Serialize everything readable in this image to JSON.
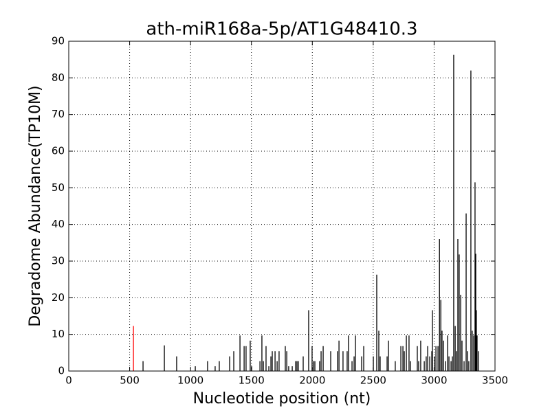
{
  "chart_data": {
    "type": "bar",
    "title": "ath-miR168a-5p/AT1G48410.3",
    "xlabel": "Nucleotide position (nt)",
    "ylabel": "Degradome Abundance(TP10M)",
    "xlim": [
      0,
      3500
    ],
    "xticks": [
      0,
      500,
      1000,
      1500,
      2000,
      2500,
      3000,
      3500
    ],
    "ylim": [
      0,
      90
    ],
    "yticks": [
      0,
      10,
      20,
      30,
      40,
      50,
      60,
      70,
      80,
      90
    ],
    "grid": true,
    "series": [
      {
        "color": "#000000",
        "x": [
          610,
          785,
          886,
          1039,
          1140,
          1202,
          1236,
          1321,
          1355,
          1406,
          1440,
          1456,
          1490,
          1502,
          1570,
          1586,
          1598,
          1620,
          1643,
          1660,
          1671,
          1694,
          1711,
          1727,
          1778,
          1790,
          1806,
          1835,
          1863,
          1874,
          1885,
          1925,
          1970,
          1998,
          2010,
          2021,
          2060,
          2072,
          2089,
          2151,
          2207,
          2219,
          2252,
          2286,
          2297,
          2326,
          2343,
          2354,
          2405,
          2422,
          2501,
          2529,
          2546,
          2557,
          2614,
          2625,
          2681,
          2727,
          2744,
          2755,
          2772,
          2794,
          2806,
          2862,
          2873,
          2890,
          2919,
          2935,
          2947,
          2964,
          2981,
          2986,
          3003,
          3015,
          3032,
          3044,
          3055,
          3065,
          3077,
          3094,
          3111,
          3122,
          3139,
          3150,
          3161,
          3173,
          3184,
          3195,
          3206,
          3218,
          3229,
          3246,
          3263,
          3274,
          3285,
          3302,
          3313,
          3325,
          3336,
          3342,
          3347,
          3353,
          3364
        ],
        "values": [
          2.7,
          7,
          4,
          1.3,
          2.7,
          1.3,
          2.7,
          4,
          5.4,
          9.7,
          6.8,
          6.8,
          8.3,
          1.3,
          2.7,
          9.7,
          2.7,
          6.8,
          1.3,
          4,
          5.4,
          5.4,
          2.7,
          5.4,
          6.8,
          5.4,
          1.3,
          1.3,
          2.7,
          2.7,
          2.7,
          4,
          16.6,
          6.8,
          2.7,
          2.7,
          2.7,
          5.4,
          6.8,
          5.4,
          5.4,
          8.3,
          5.4,
          5.4,
          9.7,
          2.7,
          4,
          9.7,
          4,
          6.8,
          4,
          26.3,
          11,
          4,
          4,
          8.3,
          2.7,
          6.8,
          6.8,
          5.4,
          9.7,
          9.7,
          2.7,
          6.8,
          2.7,
          8.3,
          2.7,
          4,
          6.8,
          4,
          5.4,
          16.6,
          4,
          6.8,
          6.8,
          36,
          19.4,
          11,
          8.3,
          2.7,
          9.7,
          4,
          2.7,
          4,
          86.3,
          12.3,
          5.4,
          36,
          31.8,
          20.8,
          8.3,
          2.7,
          43,
          5.4,
          2.7,
          82,
          11,
          9.7,
          51.5,
          32,
          16.6,
          9.7,
          5.4
        ]
      },
      {
        "color": "#ff0000",
        "x": [
          531
        ],
        "values": [
          12.3
        ]
      }
    ]
  }
}
